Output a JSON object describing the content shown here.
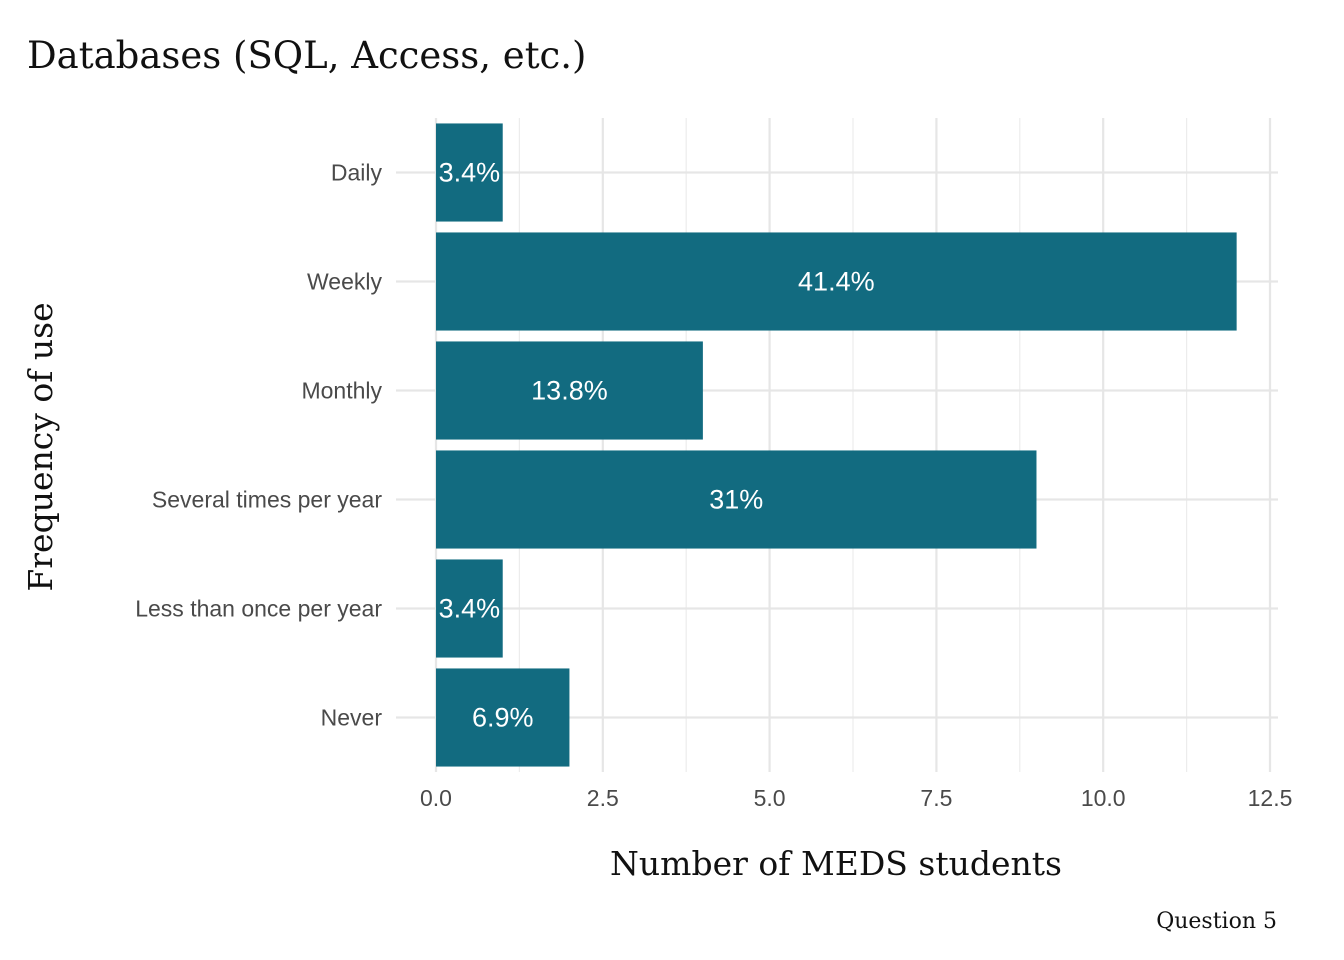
{
  "chart_data": {
    "type": "bar",
    "orientation": "horizontal",
    "title": "Databases (SQL, Access, etc.)",
    "xlabel": "Number of MEDS students",
    "ylabel": "Frequency of use",
    "caption": "Question 5",
    "categories": [
      "Daily",
      "Weekly",
      "Monthly",
      "Several times per year",
      "Less than once per year",
      "Never"
    ],
    "values": [
      1,
      12,
      4,
      9,
      1,
      2
    ],
    "labels": [
      "3.4%",
      "41.4%",
      "13.8%",
      "31%",
      "3.4%",
      "6.9%"
    ],
    "xlim": [
      0,
      12.5
    ],
    "xticks": [
      0,
      2.5,
      5,
      7.5,
      10,
      12.5
    ],
    "xtick_labels": [
      "0.0",
      "2.5",
      "5.0",
      "7.5",
      "10.0",
      "12.5"
    ],
    "bar_color": "#126B80",
    "grid": true
  }
}
